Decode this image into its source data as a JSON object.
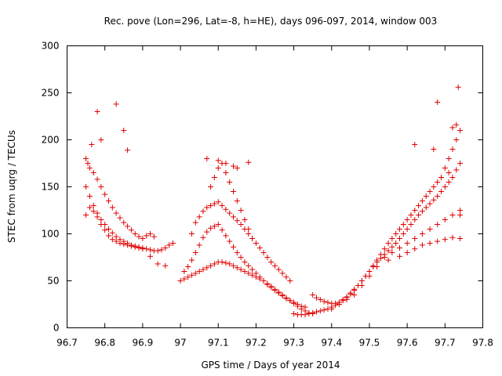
{
  "chart_data": {
    "type": "scatter",
    "title": "Rec. pove (Lon=296, Lat=-8, h=HE), days 096-097, 2014, window 003",
    "xlabel": "GPS time / Days of year 2014",
    "ylabel": "STEC from uqrg / TECUs",
    "xlim": [
      96.7,
      97.8
    ],
    "ylim": [
      0,
      300
    ],
    "xticks": [
      96.7,
      96.8,
      96.9,
      97.0,
      97.1,
      97.2,
      97.3,
      97.4,
      97.5,
      97.6,
      97.7,
      97.8
    ],
    "xtick_labels": [
      "96.7",
      "96.8",
      "96.9",
      "97",
      "97.1",
      "97.2",
      "97.3",
      "97.4",
      "97.5",
      "97.6",
      "97.7",
      "97.8"
    ],
    "yticks": [
      0,
      50,
      100,
      150,
      200,
      250,
      300
    ],
    "ytick_labels": [
      "0",
      "50",
      "100",
      "150",
      "200",
      "250",
      "300"
    ],
    "grid": false,
    "marker": "+",
    "color": "#e00000",
    "series": [
      {
        "x": [
          96.75,
          96.755,
          96.76,
          96.77,
          96.78,
          96.79,
          96.8,
          96.81,
          96.82,
          96.83,
          96.84,
          96.85,
          96.86,
          96.87,
          96.88,
          96.89,
          96.9,
          96.91,
          96.92,
          96.93,
          96.75,
          96.76,
          96.77,
          96.78,
          96.79,
          96.8,
          96.81,
          96.82,
          96.83,
          96.84,
          96.85,
          96.86,
          96.87,
          96.88,
          96.89,
          96.9,
          96.91,
          96.92,
          96.93,
          96.94,
          96.95,
          96.96,
          96.97,
          96.98,
          96.75,
          96.76,
          96.77,
          96.78,
          96.79,
          96.8,
          96.81,
          96.82,
          96.83,
          96.84,
          96.85,
          96.86,
          96.87,
          96.88,
          96.89,
          96.9,
          96.92,
          96.94,
          96.96,
          96.765,
          96.78,
          96.79,
          96.83,
          96.85,
          96.86,
          97.03,
          97.04,
          97.05,
          97.06,
          97.07,
          97.08,
          97.09,
          97.1,
          97.11,
          97.12,
          97.13,
          97.14,
          97.15,
          97.16,
          97.17,
          97.18,
          97.19,
          97.2,
          97.21,
          97.22,
          97.23,
          97.24,
          97.25,
          97.26,
          97.27,
          97.28,
          97.29,
          97.01,
          97.02,
          97.03,
          97.04,
          97.05,
          97.06,
          97.07,
          97.08,
          97.09,
          97.1,
          97.11,
          97.12,
          97.13,
          97.14,
          97.15,
          97.16,
          97.17,
          97.18,
          97.19,
          97.2,
          97.21,
          97.22,
          97.23,
          97.24,
          97.25,
          97.26,
          97.27,
          97.28,
          97.29,
          97.3,
          97.31,
          97.32,
          97.33,
          97.0,
          97.01,
          97.02,
          97.03,
          97.04,
          97.05,
          97.06,
          97.07,
          97.08,
          97.09,
          97.1,
          97.11,
          97.12,
          97.13,
          97.14,
          97.15,
          97.16,
          97.17,
          97.18,
          97.19,
          97.2,
          97.21,
          97.22,
          97.23,
          97.24,
          97.25,
          97.26,
          97.27,
          97.28,
          97.29,
          97.3,
          97.31,
          97.32,
          97.33,
          97.34,
          97.35,
          97.08,
          97.09,
          97.1,
          97.11,
          97.12,
          97.13,
          97.14,
          97.15,
          97.16,
          97.17,
          97.18,
          97.19,
          97.07,
          97.1,
          97.12,
          97.14,
          97.15,
          97.18,
          97.3,
          97.31,
          97.32,
          97.33,
          97.34,
          97.35,
          97.36,
          97.37,
          97.38,
          97.39,
          97.4,
          97.41,
          97.42,
          97.43,
          97.44,
          97.45,
          97.46,
          97.47,
          97.48,
          97.49,
          97.5,
          97.51,
          97.52,
          97.53,
          97.54,
          97.55,
          97.56,
          97.57,
          97.58,
          97.59,
          97.6,
          97.61,
          97.62,
          97.63,
          97.64,
          97.65,
          97.66,
          97.67,
          97.68,
          97.69,
          97.7,
          97.71,
          97.72,
          97.73,
          97.74,
          97.35,
          97.36,
          97.37,
          97.38,
          97.39,
          97.4,
          97.41,
          97.42,
          97.43,
          97.44,
          97.45,
          97.46,
          97.47,
          97.48,
          97.49,
          97.5,
          97.51,
          97.52,
          97.53,
          97.54,
          97.55,
          97.56,
          97.57,
          97.58,
          97.59,
          97.6,
          97.61,
          97.62,
          97.63,
          97.64,
          97.65,
          97.66,
          97.67,
          97.68,
          97.69,
          97.7,
          97.71,
          97.72,
          97.73,
          97.74,
          97.4,
          97.42,
          97.44,
          97.46,
          97.48,
          97.5,
          97.52,
          97.54,
          97.56,
          97.58,
          97.6,
          97.62,
          97.64,
          97.66,
          97.68,
          97.7,
          97.72,
          97.74,
          97.55,
          97.58,
          97.6,
          97.62,
          97.64,
          97.66,
          97.68,
          97.7,
          97.72,
          97.74,
          97.68,
          97.735,
          97.73,
          97.72,
          97.71,
          97.74,
          97.62,
          97.67
        ],
        "y": [
          180,
          175,
          170,
          165,
          158,
          150,
          142,
          135,
          128,
          122,
          117,
          112,
          108,
          104,
          100,
          97,
          95,
          98,
          100,
          97,
          150,
          140,
          130,
          122,
          115,
          110,
          105,
          101,
          97,
          94,
          92,
          90,
          88,
          87,
          86,
          85,
          84,
          83,
          82,
          82,
          83,
          85,
          88,
          90,
          120,
          128,
          124,
          118,
          110,
          104,
          98,
          94,
          92,
          90,
          89,
          88,
          87,
          86,
          85,
          84,
          76,
          68,
          66,
          195,
          230,
          200,
          238,
          210,
          189,
          100,
          112,
          118,
          124,
          128,
          130,
          132,
          134,
          130,
          126,
          122,
          118,
          114,
          110,
          105,
          100,
          95,
          90,
          85,
          80,
          75,
          70,
          66,
          62,
          58,
          54,
          50,
          60,
          65,
          72,
          80,
          88,
          96,
          102,
          106,
          108,
          110,
          104,
          98,
          92,
          86,
          80,
          75,
          70,
          66,
          62,
          58,
          54,
          50,
          46,
          43,
          40,
          37,
          34,
          31,
          29,
          27,
          25,
          23,
          22,
          50,
          52,
          54,
          56,
          58,
          60,
          62,
          64,
          66,
          68,
          70,
          70,
          69,
          68,
          66,
          64,
          62,
          60,
          58,
          56,
          54,
          52,
          50,
          47,
          44,
          41,
          38,
          35,
          32,
          29,
          26,
          23,
          20,
          18,
          16,
          15,
          150,
          160,
          170,
          175,
          165,
          155,
          145,
          135,
          125,
          115,
          105,
          95,
          180,
          178,
          175,
          172,
          170,
          176,
          15,
          14,
          14,
          14,
          15,
          16,
          17,
          18,
          19,
          20,
          22,
          24,
          27,
          30,
          33,
          37,
          41,
          45,
          50,
          55,
          60,
          66,
          72,
          78,
          84,
          90,
          95,
          100,
          105,
          110,
          115,
          120,
          125,
          130,
          135,
          140,
          145,
          150,
          155,
          160,
          170,
          180,
          190,
          200,
          210,
          35,
          32,
          30,
          28,
          27,
          26,
          26,
          27,
          29,
          32,
          36,
          40,
          45,
          50,
          55,
          60,
          65,
          70,
          74,
          78,
          82,
          86,
          90,
          95,
          100,
          105,
          110,
          115,
          120,
          124,
          128,
          132,
          136,
          140,
          145,
          150,
          155,
          160,
          168,
          175,
          20,
          25,
          30,
          35,
          45,
          55,
          65,
          75,
          80,
          85,
          90,
          95,
          100,
          105,
          110,
          115,
          120,
          125,
          72,
          76,
          80,
          84,
          88,
          90,
          92,
          94,
          96,
          95,
          240,
          256,
          216,
          213,
          165,
          120,
          195,
          190
        ]
      }
    ]
  }
}
